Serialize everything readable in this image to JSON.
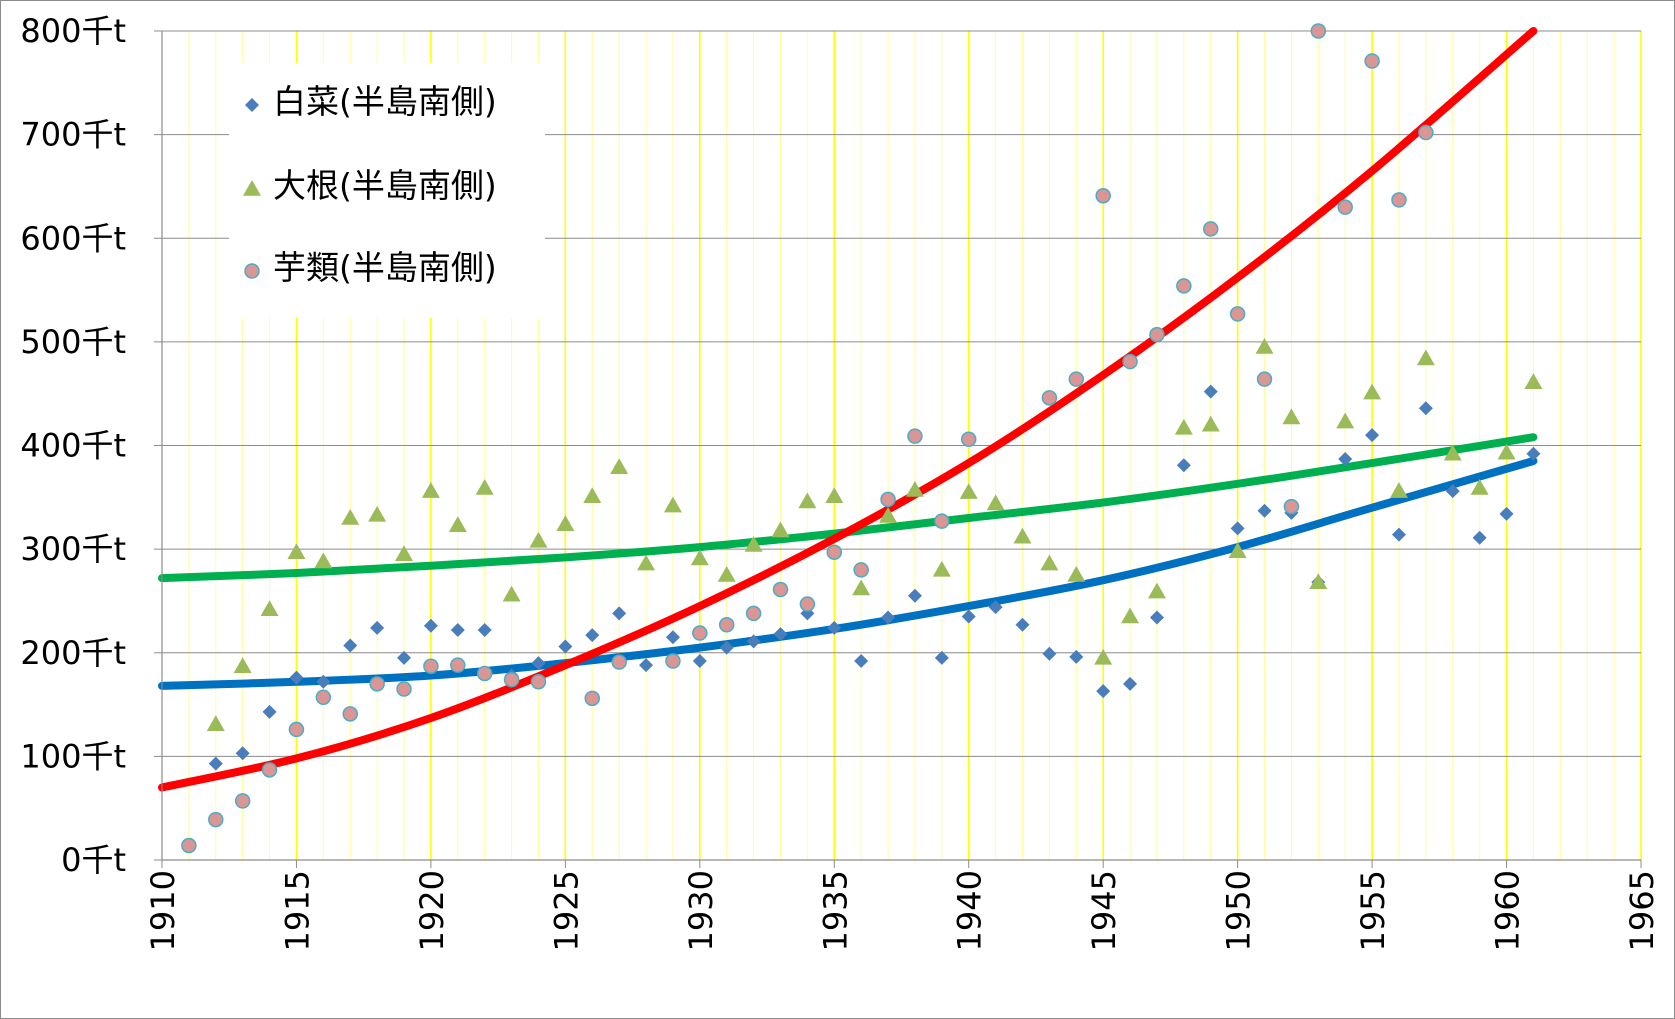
{
  "chart_data": {
    "type": "scatter",
    "title": "",
    "xlabel": "",
    "ylabel": "",
    "xlim": [
      1910,
      1965
    ],
    "ylim": [
      0,
      800
    ],
    "x_ticks": [
      "1910",
      "1915",
      "1920",
      "1925",
      "1930",
      "1935",
      "1940",
      "1945",
      "1950",
      "1955",
      "1960",
      "1965"
    ],
    "y_ticks": [
      "0千t",
      "100千t",
      "200千t",
      "300千t",
      "400千t",
      "500千t",
      "600千t",
      "700千t",
      "800千t"
    ],
    "grid": "horizontal lines every 100; vertical lines every year, yellow lines every 5 years",
    "legend_position": "top-left",
    "series": [
      {
        "name": "白菜(半島南側)",
        "marker": "diamond",
        "color": "#4a7ebb",
        "trend_color": "#0070c0",
        "x": [
          1911,
          1912,
          1913,
          1914,
          1915,
          1916,
          1917,
          1918,
          1919,
          1920,
          1921,
          1922,
          1923,
          1924,
          1925,
          1926,
          1927,
          1928,
          1929,
          1930,
          1931,
          1932,
          1933,
          1934,
          1935,
          1936,
          1937,
          1938,
          1939,
          1940,
          1941,
          1942,
          1943,
          1944,
          1945,
          1946,
          1947,
          1948,
          1949,
          1950,
          1951,
          1952,
          1953,
          1954,
          1955,
          1956,
          1957,
          1958,
          1959,
          1960,
          1961
        ],
        "y": [
          null,
          93,
          103,
          143,
          176,
          172,
          207,
          224,
          195,
          226,
          222,
          222,
          178,
          190,
          206,
          217,
          238,
          188,
          215,
          192,
          205,
          211,
          218,
          238,
          224,
          192,
          234,
          255,
          195,
          235,
          244,
          227,
          199,
          196,
          163,
          170,
          234,
          381,
          452,
          320,
          337,
          335,
          268,
          387,
          410,
          314,
          436,
          356,
          311,
          334,
          392
        ]
      },
      {
        "name": "大根(半島南側)",
        "marker": "triangle",
        "color": "#9bbb59",
        "trend_color": "#00b050",
        "x": [
          1911,
          1912,
          1913,
          1914,
          1915,
          1916,
          1917,
          1918,
          1919,
          1920,
          1921,
          1922,
          1923,
          1924,
          1925,
          1926,
          1927,
          1928,
          1929,
          1930,
          1931,
          1932,
          1933,
          1934,
          1935,
          1936,
          1937,
          1938,
          1939,
          1940,
          1941,
          1942,
          1943,
          1944,
          1945,
          1946,
          1947,
          1948,
          1949,
          1950,
          1951,
          1952,
          1953,
          1954,
          1955,
          1956,
          1957,
          1958,
          1959,
          1960,
          1961
        ],
        "y": [
          null,
          131,
          187,
          242,
          297,
          288,
          330,
          333,
          295,
          356,
          323,
          359,
          256,
          308,
          324,
          351,
          379,
          286,
          342,
          291,
          275,
          304,
          318,
          346,
          351,
          262,
          332,
          357,
          280,
          355,
          344,
          312,
          286,
          275,
          195,
          235,
          259,
          417,
          420,
          298,
          495,
          427,
          268,
          423,
          451,
          356,
          484,
          392,
          359,
          393,
          461
        ]
      },
      {
        "name": "芋類(半島南側)",
        "marker": "circle",
        "color": "#d99694",
        "stroke": "#4bacc6",
        "trend_color": "#ff0000",
        "x": [
          1911,
          1912,
          1913,
          1914,
          1915,
          1916,
          1917,
          1918,
          1919,
          1920,
          1921,
          1922,
          1923,
          1924,
          1925,
          1926,
          1927,
          1928,
          1929,
          1930,
          1931,
          1932,
          1933,
          1934,
          1935,
          1936,
          1937,
          1938,
          1939,
          1940,
          1941,
          1942,
          1943,
          1944,
          1945,
          1946,
          1947,
          1948,
          1949,
          1950,
          1951,
          1952,
          1953,
          1954,
          1955,
          1956,
          1957,
          1958,
          1959,
          1960,
          1961
        ],
        "y": [
          14,
          39,
          57,
          87,
          126,
          157,
          141,
          170,
          165,
          187,
          188,
          180,
          174,
          172,
          null,
          156,
          191,
          null,
          192,
          219,
          227,
          238,
          261,
          247,
          297,
          280,
          348,
          409,
          327,
          406,
          null,
          null,
          446,
          464,
          641,
          481,
          507,
          554,
          609,
          527,
          464,
          341,
          800,
          630,
          771,
          637,
          702,
          null,
          null,
          null,
          null
        ]
      }
    ],
    "trendlines": [
      {
        "series": "白菜(半島南側)",
        "x": [
          1910,
          1915,
          1920,
          1925,
          1930,
          1935,
          1940,
          1945,
          1950,
          1955,
          1961
        ],
        "y": [
          168,
          172,
          178,
          190,
          205,
          223,
          245,
          270,
          302,
          340,
          385
        ]
      },
      {
        "series": "大根(半島南側)",
        "x": [
          1910,
          1915,
          1920,
          1925,
          1930,
          1935,
          1940,
          1945,
          1950,
          1955,
          1961
        ],
        "y": [
          272,
          277,
          284,
          292,
          302,
          315,
          330,
          345,
          363,
          383,
          408
        ]
      },
      {
        "series": "芋類(半島南側)",
        "x": [
          1910,
          1915,
          1920,
          1925,
          1930,
          1935,
          1940,
          1945,
          1950,
          1955,
          1961
        ],
        "y": [
          70,
          98,
          137,
          188,
          245,
          310,
          383,
          468,
          562,
          665,
          800
        ]
      }
    ]
  }
}
